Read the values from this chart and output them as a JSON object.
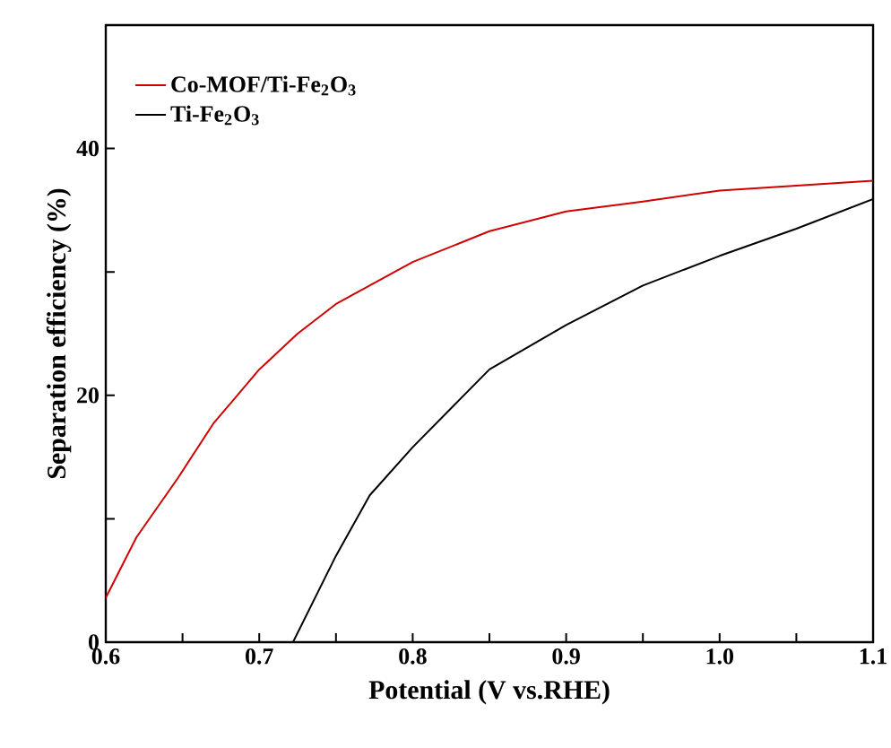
{
  "chart_data": {
    "type": "line",
    "xlabel": "Potential (V vs.RHE)",
    "ylabel": "Separation efficiency (%)",
    "xlim": [
      0.6,
      1.1
    ],
    "ylim": [
      0,
      50
    ],
    "xticks": [
      {
        "value": 0.6,
        "label": "0.6"
      },
      {
        "value": 0.65,
        "label": null
      },
      {
        "value": 0.7,
        "label": "0.7"
      },
      {
        "value": 0.75,
        "label": null
      },
      {
        "value": 0.8,
        "label": "0.8"
      },
      {
        "value": 0.85,
        "label": null
      },
      {
        "value": 0.9,
        "label": "0.9"
      },
      {
        "value": 0.95,
        "label": null
      },
      {
        "value": 1.0,
        "label": "1.0"
      },
      {
        "value": 1.05,
        "label": null
      },
      {
        "value": 1.1,
        "label": "1.1"
      }
    ],
    "yticks": [
      0,
      {
        "value": 10,
        "label": null
      },
      20,
      {
        "value": 30,
        "label": null
      },
      40
    ],
    "grid": false,
    "legend": "top left",
    "marker": "none",
    "line_style": "solid",
    "series": [
      {
        "name": "Co-MOF/Ti-Fe$_{2}$O$_{3}$",
        "color": "#d10000",
        "x": [
          0.6,
          0.62,
          0.647,
          0.67,
          0.7,
          0.725,
          0.75,
          0.8,
          0.85,
          0.9,
          0.95,
          1.0,
          1.05,
          1.1
        ],
        "values": [
          3.6,
          8.5,
          13.3,
          17.7,
          22.1,
          25,
          27.4,
          30.8,
          33.3,
          34.9,
          35.7,
          36.6,
          37,
          37.4
        ]
      },
      {
        "name": "Ti-Fe$_{2}$O$_{3}$",
        "color": "#000000",
        "x": [
          0.722,
          0.75,
          0.772,
          0.8,
          0.827,
          0.85,
          0.9,
          0.95,
          1.0,
          1.05,
          1.1
        ],
        "values": [
          0,
          7.0,
          11.9,
          15.8,
          19.2,
          22.1,
          25.7,
          28.9,
          31.3,
          33.5,
          35.9
        ]
      }
    ]
  }
}
